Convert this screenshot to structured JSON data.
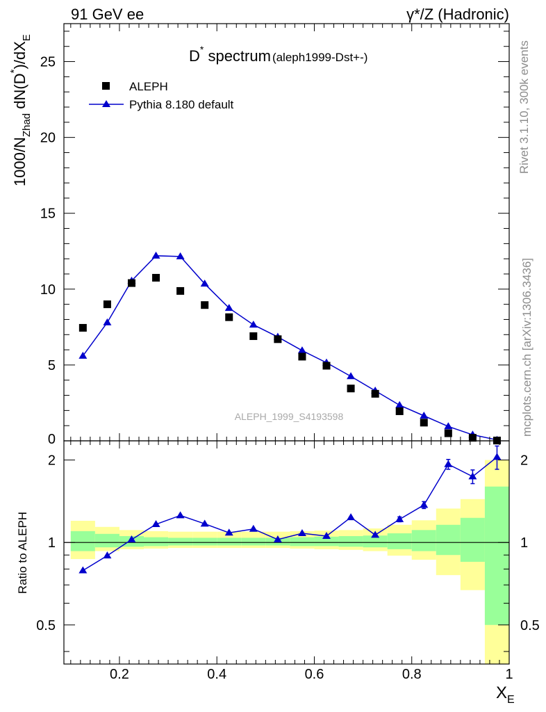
{
  "header": {
    "left": "91 GeV ee",
    "right": "γ*/Z (Hadronic)"
  },
  "side": {
    "rivet": "Rivet 3.1.10,  300k events",
    "mcplots": "mcplots.cern.ch [arXiv:1306.3436]"
  },
  "chart_data": [
    {
      "type": "scatter",
      "title_main": "D",
      "title_sup": "*",
      "title_rest": " spectrum",
      "title_sub": "(aleph1999-Dst+-)",
      "ylabel": "1000/N_Zhad dN(D*)/dX_E",
      "ylabel_parts": {
        "a": "1000/N",
        "a_sub": "Zhad",
        "b": " dN(D",
        "b_sup": "*",
        "c": ")/dX",
        "c_sub": "E"
      },
      "watermark": "ALEPH_1999_S4193598",
      "xlim": [
        0.086,
        1.0
      ],
      "ylim": [
        0,
        27.5
      ],
      "yticks": [
        0,
        5,
        10,
        15,
        20,
        25
      ],
      "legend_position": "top-left",
      "x": [
        0.125,
        0.175,
        0.225,
        0.275,
        0.325,
        0.375,
        0.425,
        0.475,
        0.525,
        0.575,
        0.625,
        0.675,
        0.725,
        0.775,
        0.825,
        0.875,
        0.925,
        0.975
      ],
      "series": [
        {
          "name": "ALEPH",
          "marker": "square",
          "color": "#000000",
          "values": [
            7.45,
            9.0,
            10.4,
            10.75,
            9.88,
            8.95,
            8.15,
            6.9,
            6.7,
            5.55,
            4.95,
            3.45,
            3.1,
            1.95,
            1.2,
            0.5,
            0.2,
            0.02
          ]
        },
        {
          "name": "Pythia 8.180 default",
          "marker": "triangle",
          "color": "#0000cc",
          "values": [
            5.6,
            7.8,
            10.55,
            12.2,
            12.15,
            10.35,
            8.75,
            7.65,
            6.85,
            5.95,
            5.15,
            4.25,
            3.3,
            2.35,
            1.65,
            0.95,
            0.4,
            0.06
          ]
        }
      ]
    },
    {
      "type": "scatter",
      "ylabel": "Ratio to ALEPH",
      "xlabel": "X",
      "xlabel_sub": "E",
      "yscale": "log",
      "ylim": [
        0.36,
        2.35
      ],
      "yticks": [
        "0.5",
        "1",
        "2"
      ],
      "xlim": [
        0.086,
        1.0
      ],
      "xticks": [
        "0.2",
        "0.4",
        "0.6",
        "0.8",
        "1"
      ],
      "x": [
        0.125,
        0.175,
        0.225,
        0.275,
        0.325,
        0.375,
        0.425,
        0.475,
        0.525,
        0.575,
        0.625,
        0.675,
        0.725,
        0.775,
        0.825,
        0.875,
        0.925,
        0.975
      ],
      "series": [
        {
          "name": "Pythia 8.180 default",
          "color": "#0000cc",
          "values": [
            0.79,
            0.895,
            1.025,
            1.165,
            1.255,
            1.17,
            1.085,
            1.12,
            1.025,
            1.08,
            1.055,
            1.235,
            1.065,
            1.215,
            1.37,
            1.93,
            1.74,
            2.05
          ],
          "errors": [
            0,
            0,
            0,
            0,
            0,
            0,
            0,
            0,
            0,
            0,
            0,
            0,
            0,
            0.025,
            0.04,
            0.08,
            0.1,
            0.2
          ]
        }
      ],
      "bands": {
        "edges": [
          0.1,
          0.15,
          0.2,
          0.25,
          0.3,
          0.35,
          0.4,
          0.45,
          0.5,
          0.55,
          0.6,
          0.65,
          0.7,
          0.75,
          0.8,
          0.85,
          0.9,
          0.95,
          1.0
        ],
        "green_color": "#99ff99",
        "yellow_color": "#ffff99",
        "green": [
          [
            0.93,
            1.1
          ],
          [
            0.96,
            1.075
          ],
          [
            0.965,
            1.055
          ],
          [
            0.97,
            1.045
          ],
          [
            0.975,
            1.04
          ],
          [
            0.975,
            1.04
          ],
          [
            0.975,
            1.04
          ],
          [
            0.975,
            1.04
          ],
          [
            0.975,
            1.04
          ],
          [
            0.97,
            1.045
          ],
          [
            0.97,
            1.05
          ],
          [
            0.965,
            1.055
          ],
          [
            0.96,
            1.06
          ],
          [
            0.945,
            1.08
          ],
          [
            0.93,
            1.11
          ],
          [
            0.9,
            1.16
          ],
          [
            0.85,
            1.23
          ],
          [
            0.5,
            1.6
          ]
        ],
        "yellow": [
          [
            0.87,
            1.2
          ],
          [
            0.93,
            1.14
          ],
          [
            0.945,
            1.11
          ],
          [
            0.95,
            1.1
          ],
          [
            0.955,
            1.095
          ],
          [
            0.955,
            1.095
          ],
          [
            0.955,
            1.095
          ],
          [
            0.955,
            1.095
          ],
          [
            0.955,
            1.095
          ],
          [
            0.95,
            1.1
          ],
          [
            0.945,
            1.105
          ],
          [
            0.94,
            1.11
          ],
          [
            0.93,
            1.125
          ],
          [
            0.895,
            1.16
          ],
          [
            0.865,
            1.205
          ],
          [
            0.76,
            1.33
          ],
          [
            0.67,
            1.44
          ],
          [
            0.3,
            2.0
          ]
        ]
      }
    }
  ]
}
